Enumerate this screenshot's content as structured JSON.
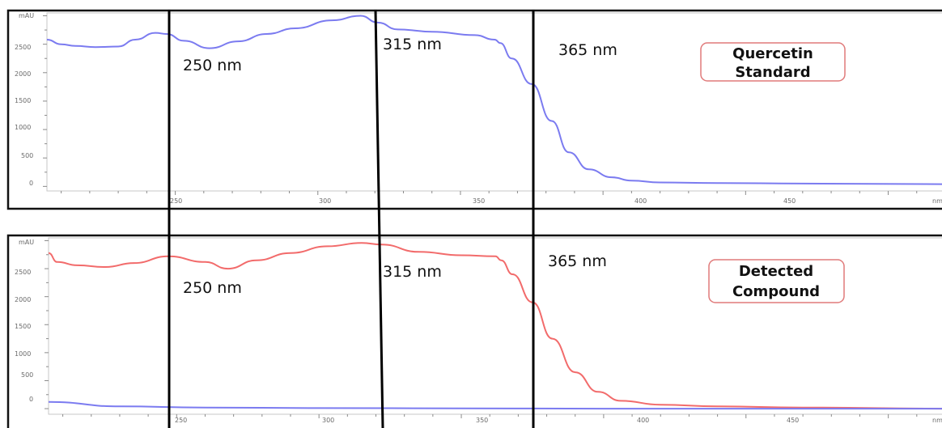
{
  "chart_data": [
    {
      "type": "line",
      "unit_label": "mAU",
      "x_tick_labels": [
        "250",
        "300",
        "350",
        "400",
        "450",
        "nm"
      ],
      "y_tick_labels": [
        "2500",
        "2000",
        "1500",
        "1000",
        "500",
        "0"
      ],
      "xlim": [
        205,
        520
      ],
      "ylim": [
        -80,
        3050
      ],
      "series": [
        {
          "color": "#7b7bf0",
          "x": [
            205,
            210,
            215,
            222,
            230,
            236,
            243,
            247,
            253,
            262,
            272,
            282,
            292,
            305,
            315,
            321,
            328,
            340,
            355,
            362,
            364,
            368,
            375,
            382,
            388,
            395,
            403,
            410,
            420,
            440,
            470,
            520
          ],
          "y": [
            2580,
            2500,
            2470,
            2450,
            2460,
            2580,
            2700,
            2680,
            2560,
            2430,
            2550,
            2680,
            2780,
            2920,
            3000,
            2880,
            2760,
            2720,
            2660,
            2580,
            2520,
            2250,
            1800,
            1150,
            600,
            300,
            160,
            100,
            70,
            60,
            50,
            40
          ]
        }
      ],
      "annotations": [
        "250 nm",
        "315 nm",
        "365 nm"
      ],
      "label_box": [
        "Quercetin",
        "Standard"
      ],
      "reference_lines_nm": [
        250,
        315,
        365
      ]
    },
    {
      "type": "line",
      "unit_label": "mAU",
      "x_tick_labels": [
        "250",
        "300",
        "350",
        "400",
        "450",
        "nm"
      ],
      "y_tick_labels": [
        "2500",
        "2000",
        "1500",
        "1000",
        "500",
        "0"
      ],
      "xlim": [
        205,
        520
      ],
      "ylim": [
        -100,
        3050
      ],
      "series": [
        {
          "color": "#f26b6b",
          "x": [
            205,
            208,
            215,
            225,
            235,
            247,
            260,
            268,
            278,
            290,
            303,
            315,
            322,
            335,
            350,
            362,
            364,
            368,
            375,
            382,
            390,
            398,
            406,
            420,
            440,
            470,
            520
          ],
          "y": [
            2780,
            2620,
            2560,
            2530,
            2600,
            2720,
            2620,
            2500,
            2650,
            2780,
            2900,
            2960,
            2930,
            2800,
            2740,
            2720,
            2650,
            2400,
            1900,
            1250,
            650,
            300,
            140,
            70,
            40,
            20,
            0
          ]
        },
        {
          "color": "#7b7bf0",
          "x": [
            205,
            230,
            260,
            300,
            350,
            400,
            450,
            520
          ],
          "y": [
            120,
            40,
            20,
            10,
            5,
            0,
            0,
            0
          ]
        }
      ],
      "annotations": [
        "250 nm",
        "315 nm",
        "365 nm"
      ],
      "label_box": [
        "Detected",
        "Compound"
      ],
      "reference_lines_nm": [
        250,
        315,
        365
      ]
    }
  ]
}
